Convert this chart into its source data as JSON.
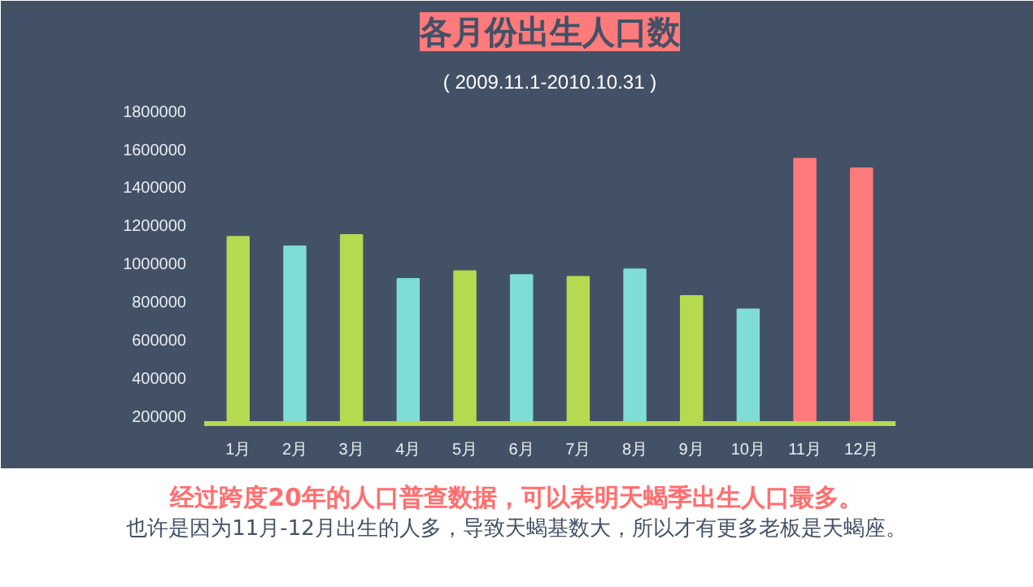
{
  "chart_data": {
    "type": "bar",
    "title": "各月份出生人口数",
    "subtitle": "( 2009.11.1-2010.10.31 )",
    "categories": [
      "1月",
      "2月",
      "3月",
      "4月",
      "5月",
      "6月",
      "7月",
      "8月",
      "9月",
      "10月",
      "11月",
      "12月"
    ],
    "values": [
      1140000,
      1090000,
      1150000,
      920000,
      960000,
      940000,
      930000,
      970000,
      830000,
      760000,
      1550000,
      1500000
    ],
    "colors": [
      "#b5d94f",
      "#7fddd6",
      "#b5d94f",
      "#7fddd6",
      "#b5d94f",
      "#7fddd6",
      "#b5d94f",
      "#7fddd6",
      "#b5d94f",
      "#7fddd6",
      "#ff7b7b",
      "#ff7b7b"
    ],
    "ylim": [
      160000,
      1850000
    ],
    "yticks": [
      200000,
      400000,
      600000,
      800000,
      1000000,
      1200000,
      1400000,
      1600000,
      1800000
    ],
    "grid": false,
    "annotations": [
      "经过跨度20年的人口普查数据，可以表明天蝎季出生人口最多。",
      "也许是因为11月-12月出生的人多，导致天蝎基数大，所以才有更多老板是天蝎座。"
    ]
  }
}
